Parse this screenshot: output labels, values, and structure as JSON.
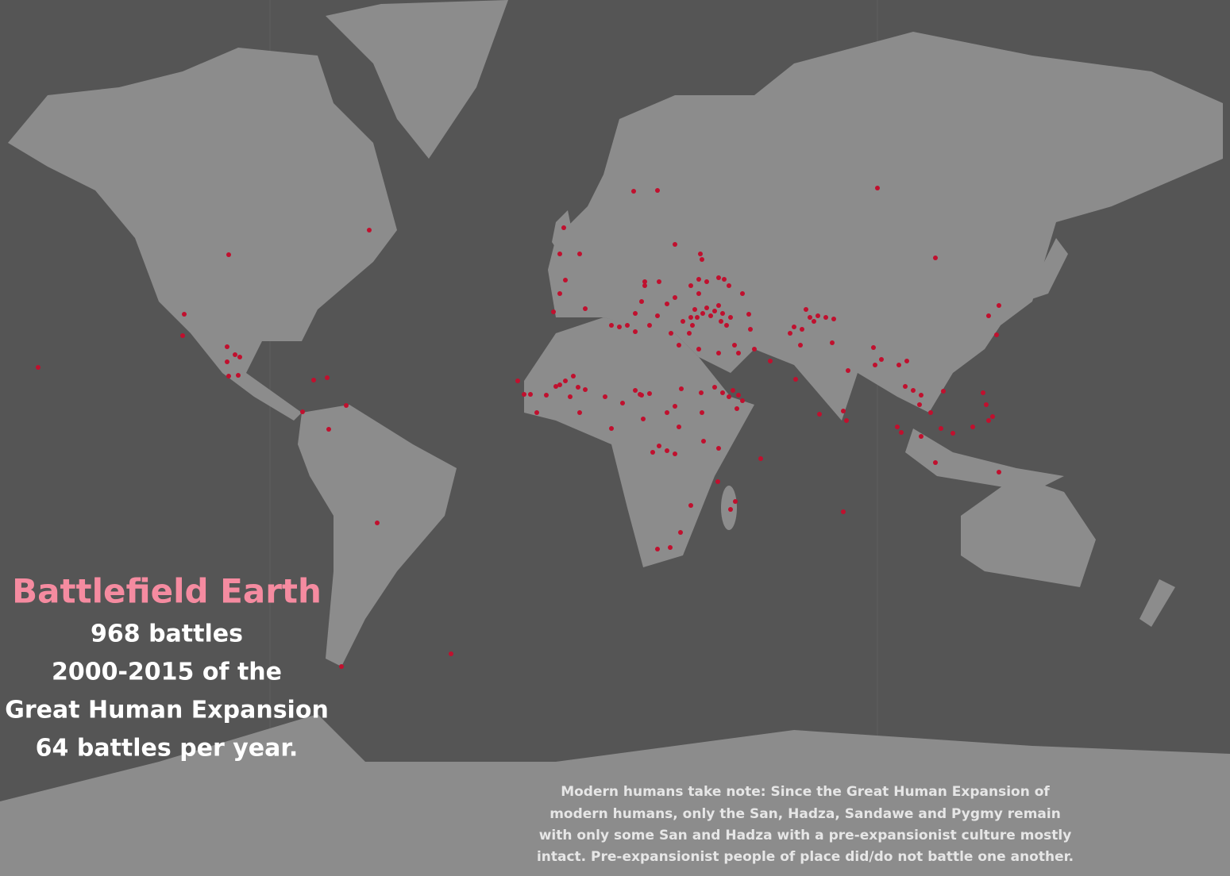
{
  "title": "Battlefield Earth",
  "subtitle_lines": [
    "968 battles",
    "2000-2015 of the",
    "Great Human Expansion",
    "64 battles per year."
  ],
  "note_lines": [
    "Modern humans take note: Since the Great Human Expansion of",
    "modern humans, only the San, Hadza, Sandawe and Pygmy remain",
    "with only some San and Hadza with a pre-expansionist culture mostly",
    "intact. Pre-expansionist people of place did/do not battle one another."
  ]
}
